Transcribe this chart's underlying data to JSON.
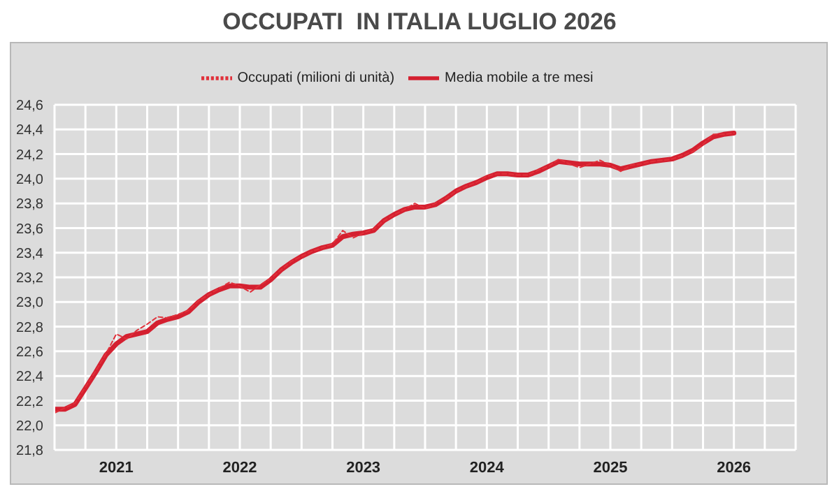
{
  "chart_data": {
    "type": "line",
    "title": "OCCUPATI  IN ITALIA LUGLIO 2026",
    "x": [
      "2021-01",
      "2021-02",
      "2021-03",
      "2021-04",
      "2021-05",
      "2021-06",
      "2021-07",
      "2021-08",
      "2021-09",
      "2021-10",
      "2021-11",
      "2021-12",
      "2022-01",
      "2022-02",
      "2022-03",
      "2022-04",
      "2022-05",
      "2022-06",
      "2022-07",
      "2022-08",
      "2022-09",
      "2022-10",
      "2022-11",
      "2022-12",
      "2023-01",
      "2023-02",
      "2023-03",
      "2023-04",
      "2023-05",
      "2023-06",
      "2023-07",
      "2023-08",
      "2023-09",
      "2023-10",
      "2023-11",
      "2023-12",
      "2024-01",
      "2024-02",
      "2024-03",
      "2024-04",
      "2024-05",
      "2024-06",
      "2024-07",
      "2024-08",
      "2024-09",
      "2024-10",
      "2024-11",
      "2024-12",
      "2025-01",
      "2025-02",
      "2025-03",
      "2025-04",
      "2025-05",
      "2025-06",
      "2025-07",
      "2025-08",
      "2025-09",
      "2025-10",
      "2025-11",
      "2025-12",
      "2026-01",
      "2026-02",
      "2026-03",
      "2026-04",
      "2026-05",
      "2026-06",
      "2026-07"
    ],
    "series": [
      {
        "name": "Occupati (milioni di unità)",
        "color": "#e0303a",
        "line_style": "dashed",
        "values": [
          22.1,
          22.14,
          22.18,
          22.31,
          22.44,
          22.58,
          22.74,
          22.7,
          22.77,
          22.82,
          22.88,
          22.87,
          22.9,
          22.93,
          23.01,
          23.06,
          23.11,
          23.16,
          23.13,
          23.08,
          23.14,
          23.19,
          23.26,
          23.33,
          23.37,
          23.41,
          23.44,
          23.47,
          23.58,
          23.52,
          23.56,
          23.59,
          23.66,
          23.71,
          23.75,
          23.8,
          23.76,
          23.8,
          23.84,
          23.9,
          23.94,
          23.97,
          24.02,
          24.04,
          24.04,
          24.03,
          24.03,
          24.07,
          24.1,
          24.16,
          24.12,
          24.09,
          24.12,
          24.15,
          24.11,
          24.06,
          24.11,
          24.12,
          24.14,
          24.15,
          24.16,
          24.19,
          24.22,
          24.28,
          24.36,
          24.36,
          24.37
        ]
      },
      {
        "name": "Media mobile a tre mesi",
        "color": "#d42030",
        "line_style": "solid",
        "values": [
          22.13,
          22.13,
          22.17,
          22.3,
          22.43,
          22.57,
          22.66,
          22.72,
          22.74,
          22.76,
          22.83,
          22.86,
          22.88,
          22.92,
          23.0,
          23.06,
          23.1,
          23.13,
          23.13,
          23.12,
          23.12,
          23.18,
          23.26,
          23.32,
          23.37,
          23.41,
          23.44,
          23.46,
          23.53,
          23.55,
          23.56,
          23.58,
          23.66,
          23.71,
          23.75,
          23.77,
          23.77,
          23.79,
          23.84,
          23.9,
          23.94,
          23.97,
          24.01,
          24.04,
          24.04,
          24.03,
          24.03,
          24.06,
          24.1,
          24.14,
          24.13,
          24.12,
          24.12,
          24.12,
          24.11,
          24.08,
          24.1,
          24.12,
          24.14,
          24.15,
          24.16,
          24.19,
          24.23,
          24.29,
          24.34,
          24.36,
          24.37
        ]
      }
    ],
    "xlim": [
      "2021-01",
      "2027-01"
    ],
    "xticks": [
      {
        "value": "2021-01",
        "label": null
      },
      {
        "value": "2021-04",
        "label": null
      },
      {
        "value": "2021-07",
        "label": "2021"
      },
      {
        "value": "2021-10",
        "label": null
      },
      {
        "value": "2022-01",
        "label": null
      },
      {
        "value": "2022-04",
        "label": null
      },
      {
        "value": "2022-07",
        "label": "2022"
      },
      {
        "value": "2022-10",
        "label": null
      },
      {
        "value": "2023-01",
        "label": null
      },
      {
        "value": "2023-04",
        "label": null
      },
      {
        "value": "2023-07",
        "label": "2023"
      },
      {
        "value": "2023-10",
        "label": null
      },
      {
        "value": "2024-01",
        "label": null
      },
      {
        "value": "2024-04",
        "label": null
      },
      {
        "value": "2024-07",
        "label": "2024"
      },
      {
        "value": "2024-10",
        "label": null
      },
      {
        "value": "2025-01",
        "label": null
      },
      {
        "value": "2025-04",
        "label": null
      },
      {
        "value": "2025-07",
        "label": "2025"
      },
      {
        "value": "2025-10",
        "label": null
      },
      {
        "value": "2026-01",
        "label": null
      },
      {
        "value": "2026-04",
        "label": null
      },
      {
        "value": "2026-07",
        "label": "2026"
      },
      {
        "value": "2026-10",
        "label": null
      },
      {
        "value": "2027-01",
        "label": null
      }
    ],
    "ylim": [
      21.8,
      24.6
    ],
    "yticks": [
      {
        "value": 21.8,
        "label": "21,8"
      },
      {
        "value": 22.0,
        "label": "22,0"
      },
      {
        "value": 22.2,
        "label": "22,2"
      },
      {
        "value": 22.4,
        "label": "22,4"
      },
      {
        "value": 22.6,
        "label": "22,6"
      },
      {
        "value": 22.8,
        "label": "22,8"
      },
      {
        "value": 23.0,
        "label": "23,0"
      },
      {
        "value": 23.2,
        "label": "23,2"
      },
      {
        "value": 23.4,
        "label": "23,4"
      },
      {
        "value": 23.6,
        "label": "23,6"
      },
      {
        "value": 23.8,
        "label": "23,8"
      },
      {
        "value": 24.0,
        "label": "24,0"
      },
      {
        "value": 24.2,
        "label": "24,2"
      },
      {
        "value": 24.4,
        "label": "24,4"
      },
      {
        "value": 24.6,
        "label": "24,6"
      }
    ],
    "grid": true,
    "legend": "top",
    "marker": "none"
  }
}
